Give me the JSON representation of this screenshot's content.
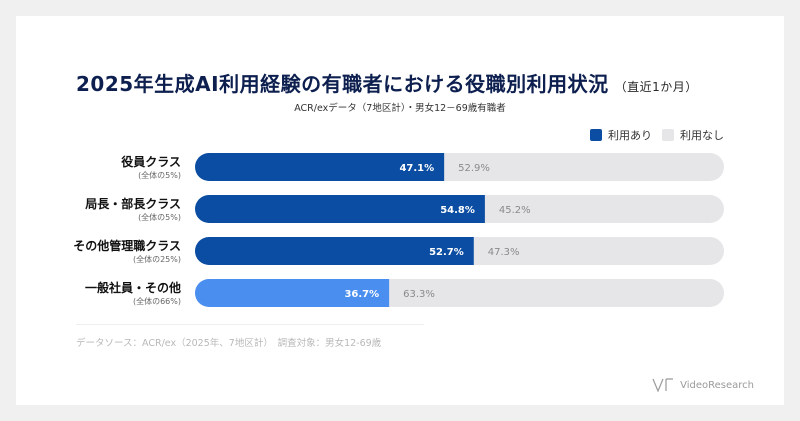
{
  "title": "2025年生成AI利用経験の有職者における役職別利用状況",
  "title_suffix": "（直近1か月）",
  "subtitle": "ACR/exデータ（7地区計）・男女12－69歳有職者",
  "legend": [
    {
      "label": "利用あり",
      "color": "#0b4da2"
    },
    {
      "label": "利用なし",
      "color": "#e6e6e9"
    }
  ],
  "footer": "データソース：ACR/ex（2025年、7地区計）　調査対象：男女12-69歳",
  "brand": "VideoResearch",
  "colors": {
    "used": "#0b4da2",
    "used_highlight": "#4a8ef0",
    "not_used": "#e6e6e9",
    "label_main": "#111111",
    "label_sub": "#666666",
    "value_used": "#ffffff",
    "value_not_used": "#8a8a8a"
  },
  "chart_data": {
    "type": "bar",
    "orientation": "horizontal",
    "stacked": true,
    "categories": [
      "役員クラス",
      "局長・部長クラス",
      "その他管理職クラス",
      "一般社員・その他"
    ],
    "category_notes": [
      "(全体の5%)",
      "(全体の5%)",
      "(全体の25%)",
      "(全体の66%)"
    ],
    "series": [
      {
        "name": "利用あり",
        "values": [
          47.1,
          54.8,
          52.7,
          36.7
        ],
        "labels": [
          "47.1%",
          "54.8%",
          "52.7%",
          "36.7%"
        ]
      },
      {
        "name": "利用なし",
        "values": [
          52.9,
          45.2,
          47.3,
          63.3
        ],
        "labels": [
          "52.9%",
          "45.2%",
          "47.3%",
          "63.3%"
        ]
      }
    ],
    "xlim": [
      0,
      100
    ],
    "highlight_index": 3,
    "grid": false,
    "legend_position": "top-right"
  }
}
